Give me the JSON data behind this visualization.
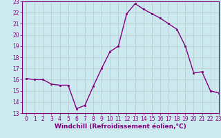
{
  "x": [
    0,
    1,
    2,
    3,
    4,
    5,
    6,
    7,
    8,
    9,
    10,
    11,
    12,
    13,
    14,
    15,
    16,
    17,
    18,
    19,
    20,
    21,
    22,
    23
  ],
  "y": [
    16.1,
    16.0,
    16.0,
    15.6,
    15.5,
    15.5,
    13.4,
    13.7,
    15.4,
    17.0,
    18.5,
    19.0,
    21.9,
    22.8,
    22.3,
    21.9,
    21.5,
    21.0,
    20.5,
    19.0,
    16.6,
    16.7,
    15.0,
    14.8
  ],
  "line_color": "#800080",
  "marker": "s",
  "marker_size": 2,
  "linewidth": 1.0,
  "bg_color": "#cce9f0",
  "grid_color": "#b8c8cc",
  "xlabel": "Windchill (Refroidissement éolien,°C)",
  "ylim": [
    13,
    23
  ],
  "xlim": [
    -0.5,
    23
  ],
  "yticks": [
    13,
    14,
    15,
    16,
    17,
    18,
    19,
    20,
    21,
    22,
    23
  ],
  "xticks": [
    0,
    1,
    2,
    3,
    4,
    5,
    6,
    7,
    8,
    9,
    10,
    11,
    12,
    13,
    14,
    15,
    16,
    17,
    18,
    19,
    20,
    21,
    22,
    23
  ],
  "tick_fontsize": 5.5,
  "xlabel_fontsize": 6.5,
  "tick_color": "#800080",
  "label_color": "#800080",
  "spine_color": "#800080"
}
